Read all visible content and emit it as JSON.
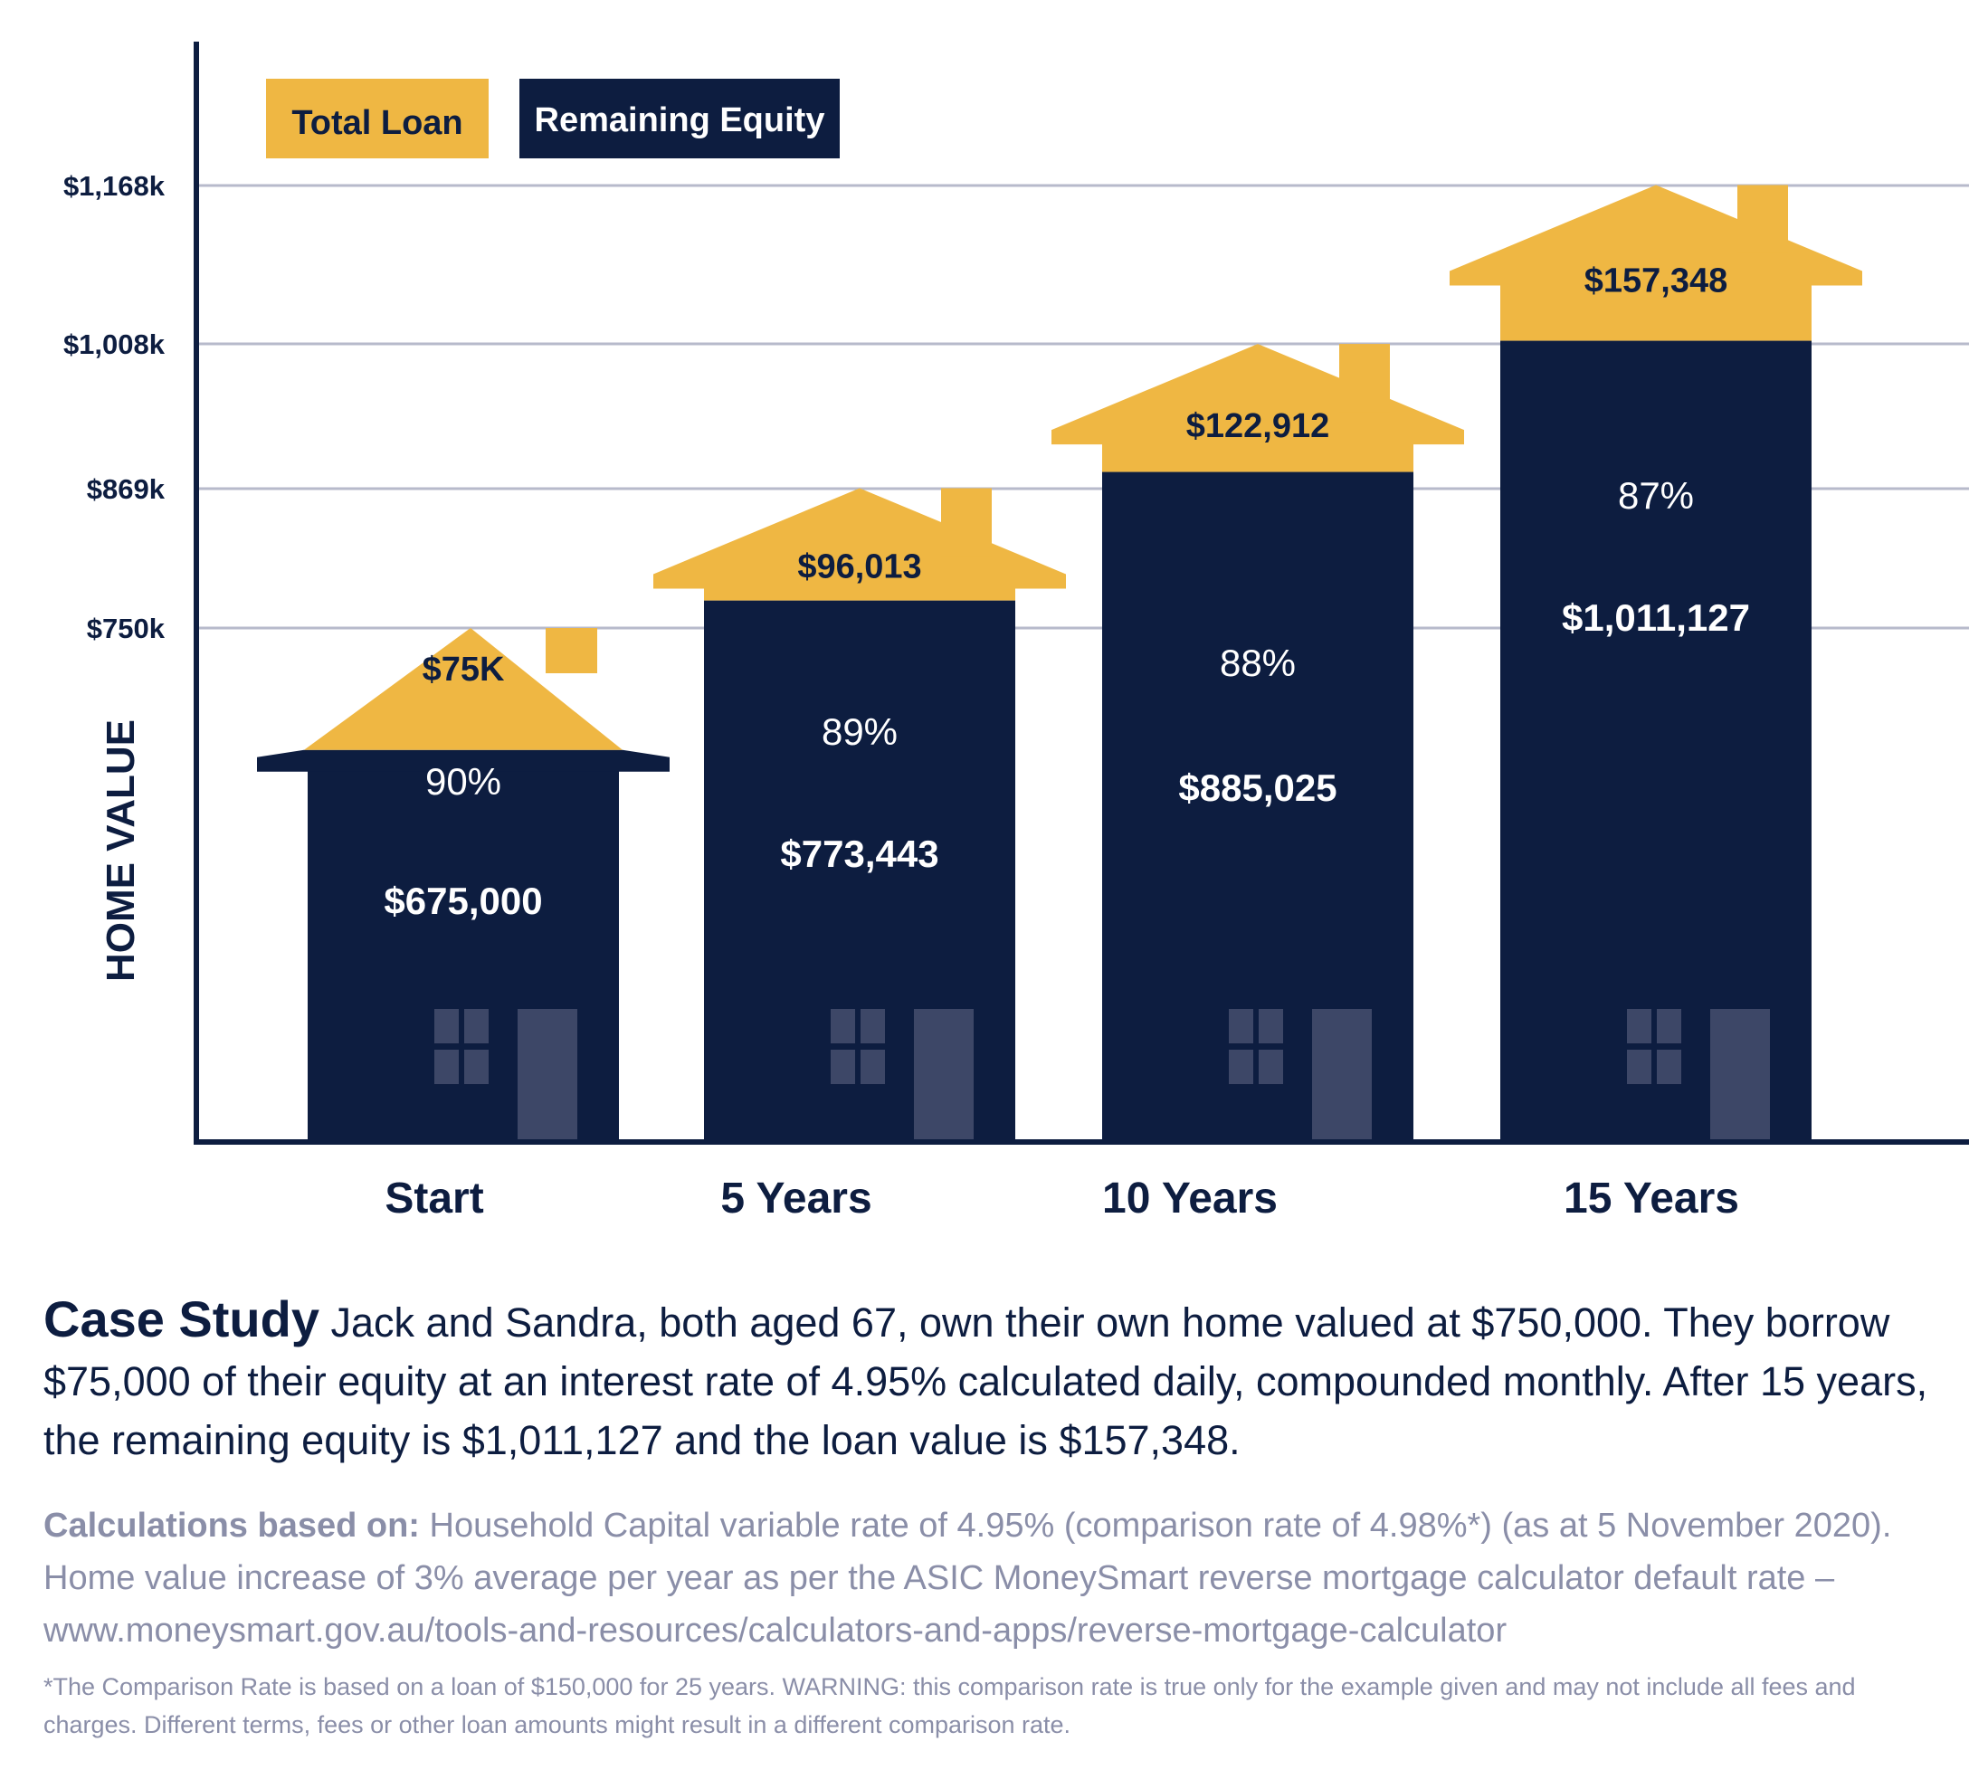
{
  "chart_data": {
    "type": "bar",
    "stacked": true,
    "categories": [
      "Start",
      "5 Years",
      "10 Years",
      "15 Years"
    ],
    "series": [
      {
        "name": "Remaining Equity",
        "color": "#0d1d40",
        "values": [
          675000,
          773443,
          885025,
          1011127
        ]
      },
      {
        "name": "Total Loan",
        "color": "#efb743",
        "values": [
          75000,
          96013,
          122912,
          157348
        ]
      }
    ],
    "equity_labels": [
      "$675,000",
      "$773,443",
      "$885,025",
      "$1,011,127"
    ],
    "loan_labels": [
      "$75K",
      "$96,013",
      "$122,912",
      "$157,348"
    ],
    "equity_percent_labels": [
      "90%",
      "89%",
      "88%",
      "87%"
    ],
    "y_ticks": [
      750,
      869,
      1008,
      1168
    ],
    "y_tick_labels": [
      "$750k",
      "$869k",
      "$1,008k",
      "$1,168k"
    ],
    "ylabel": "HOME VALUE",
    "xlabel": "",
    "grid": true,
    "legend_position": "top-left",
    "legend": [
      "Total Loan",
      "Remaining Equity"
    ],
    "house_icon": "house-shape-with-chimney-window-door"
  },
  "colors": {
    "navy": "#0d1d40",
    "gold": "#efb743",
    "grid": "#b7bacb",
    "window": "#3d4767",
    "gray_text": "#8a8ea8"
  },
  "case_study": {
    "title": "Case Study",
    "text": "Jack and Sandra, both aged 67, own their own home valued at $750,000. They borrow $75,000 of their equity at an interest rate of 4.95% calculated daily, compounded monthly. After 15 years, the remaining equity is $1,011,127 and the loan value is $157,348."
  },
  "calculations": {
    "title": "Calculations based on:",
    "text": "Household Capital variable rate of 4.95% (comparison rate of 4.98%*) (as at 5 November 2020). Home value increase of 3% average per year as per the ASIC MoneySmart reverse mortgage calculator default rate – www.moneysmart.gov.au/tools-and-resources/calculators-and-apps/reverse-mortgage-calculator"
  },
  "footnote": "*The Comparison Rate is based on a loan of $150,000 for 25 years. WARNING: this comparison rate is true only for the example given and may not include all fees and charges. Different terms, fees or other loan amounts might result in a different comparison rate."
}
